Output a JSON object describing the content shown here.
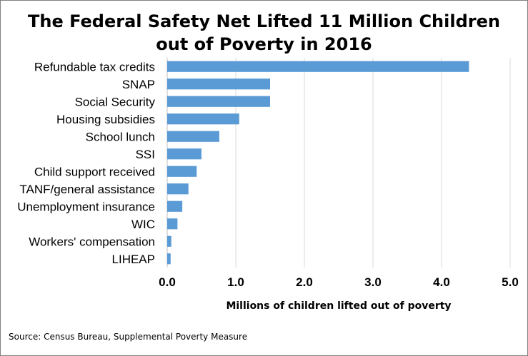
{
  "chart_data": {
    "type": "bar",
    "orientation": "horizontal",
    "title": [
      "The Federal Safety Net Lifted 11 Million Children",
      "out of Poverty in 2016"
    ],
    "categories": [
      "Refundable tax credits",
      "SNAP",
      "Social Security",
      "Housing subsidies",
      "School lunch",
      "SSI",
      "Child support received",
      "TANF/general assistance",
      "Unemployment insurance",
      "WIC",
      "Workers' compensation",
      "LIHEAP"
    ],
    "values": [
      4.4,
      1.5,
      1.5,
      1.05,
      0.76,
      0.5,
      0.43,
      0.31,
      0.22,
      0.15,
      0.06,
      0.05
    ],
    "xlabel": "Millions of children lifted out of poverty",
    "ylabel": "",
    "xlim": [
      0,
      5
    ],
    "ticks": [
      "0.0",
      "1.0",
      "2.0",
      "3.0",
      "4.0",
      "5.0"
    ],
    "grid": "vertical",
    "legend": "none",
    "colors": {
      "bar": "#5b9bd5",
      "grid": "#d9d9d9",
      "border": "#7f7f7f"
    }
  },
  "source": "Source: Census Bureau, Supplemental Poverty Measure"
}
